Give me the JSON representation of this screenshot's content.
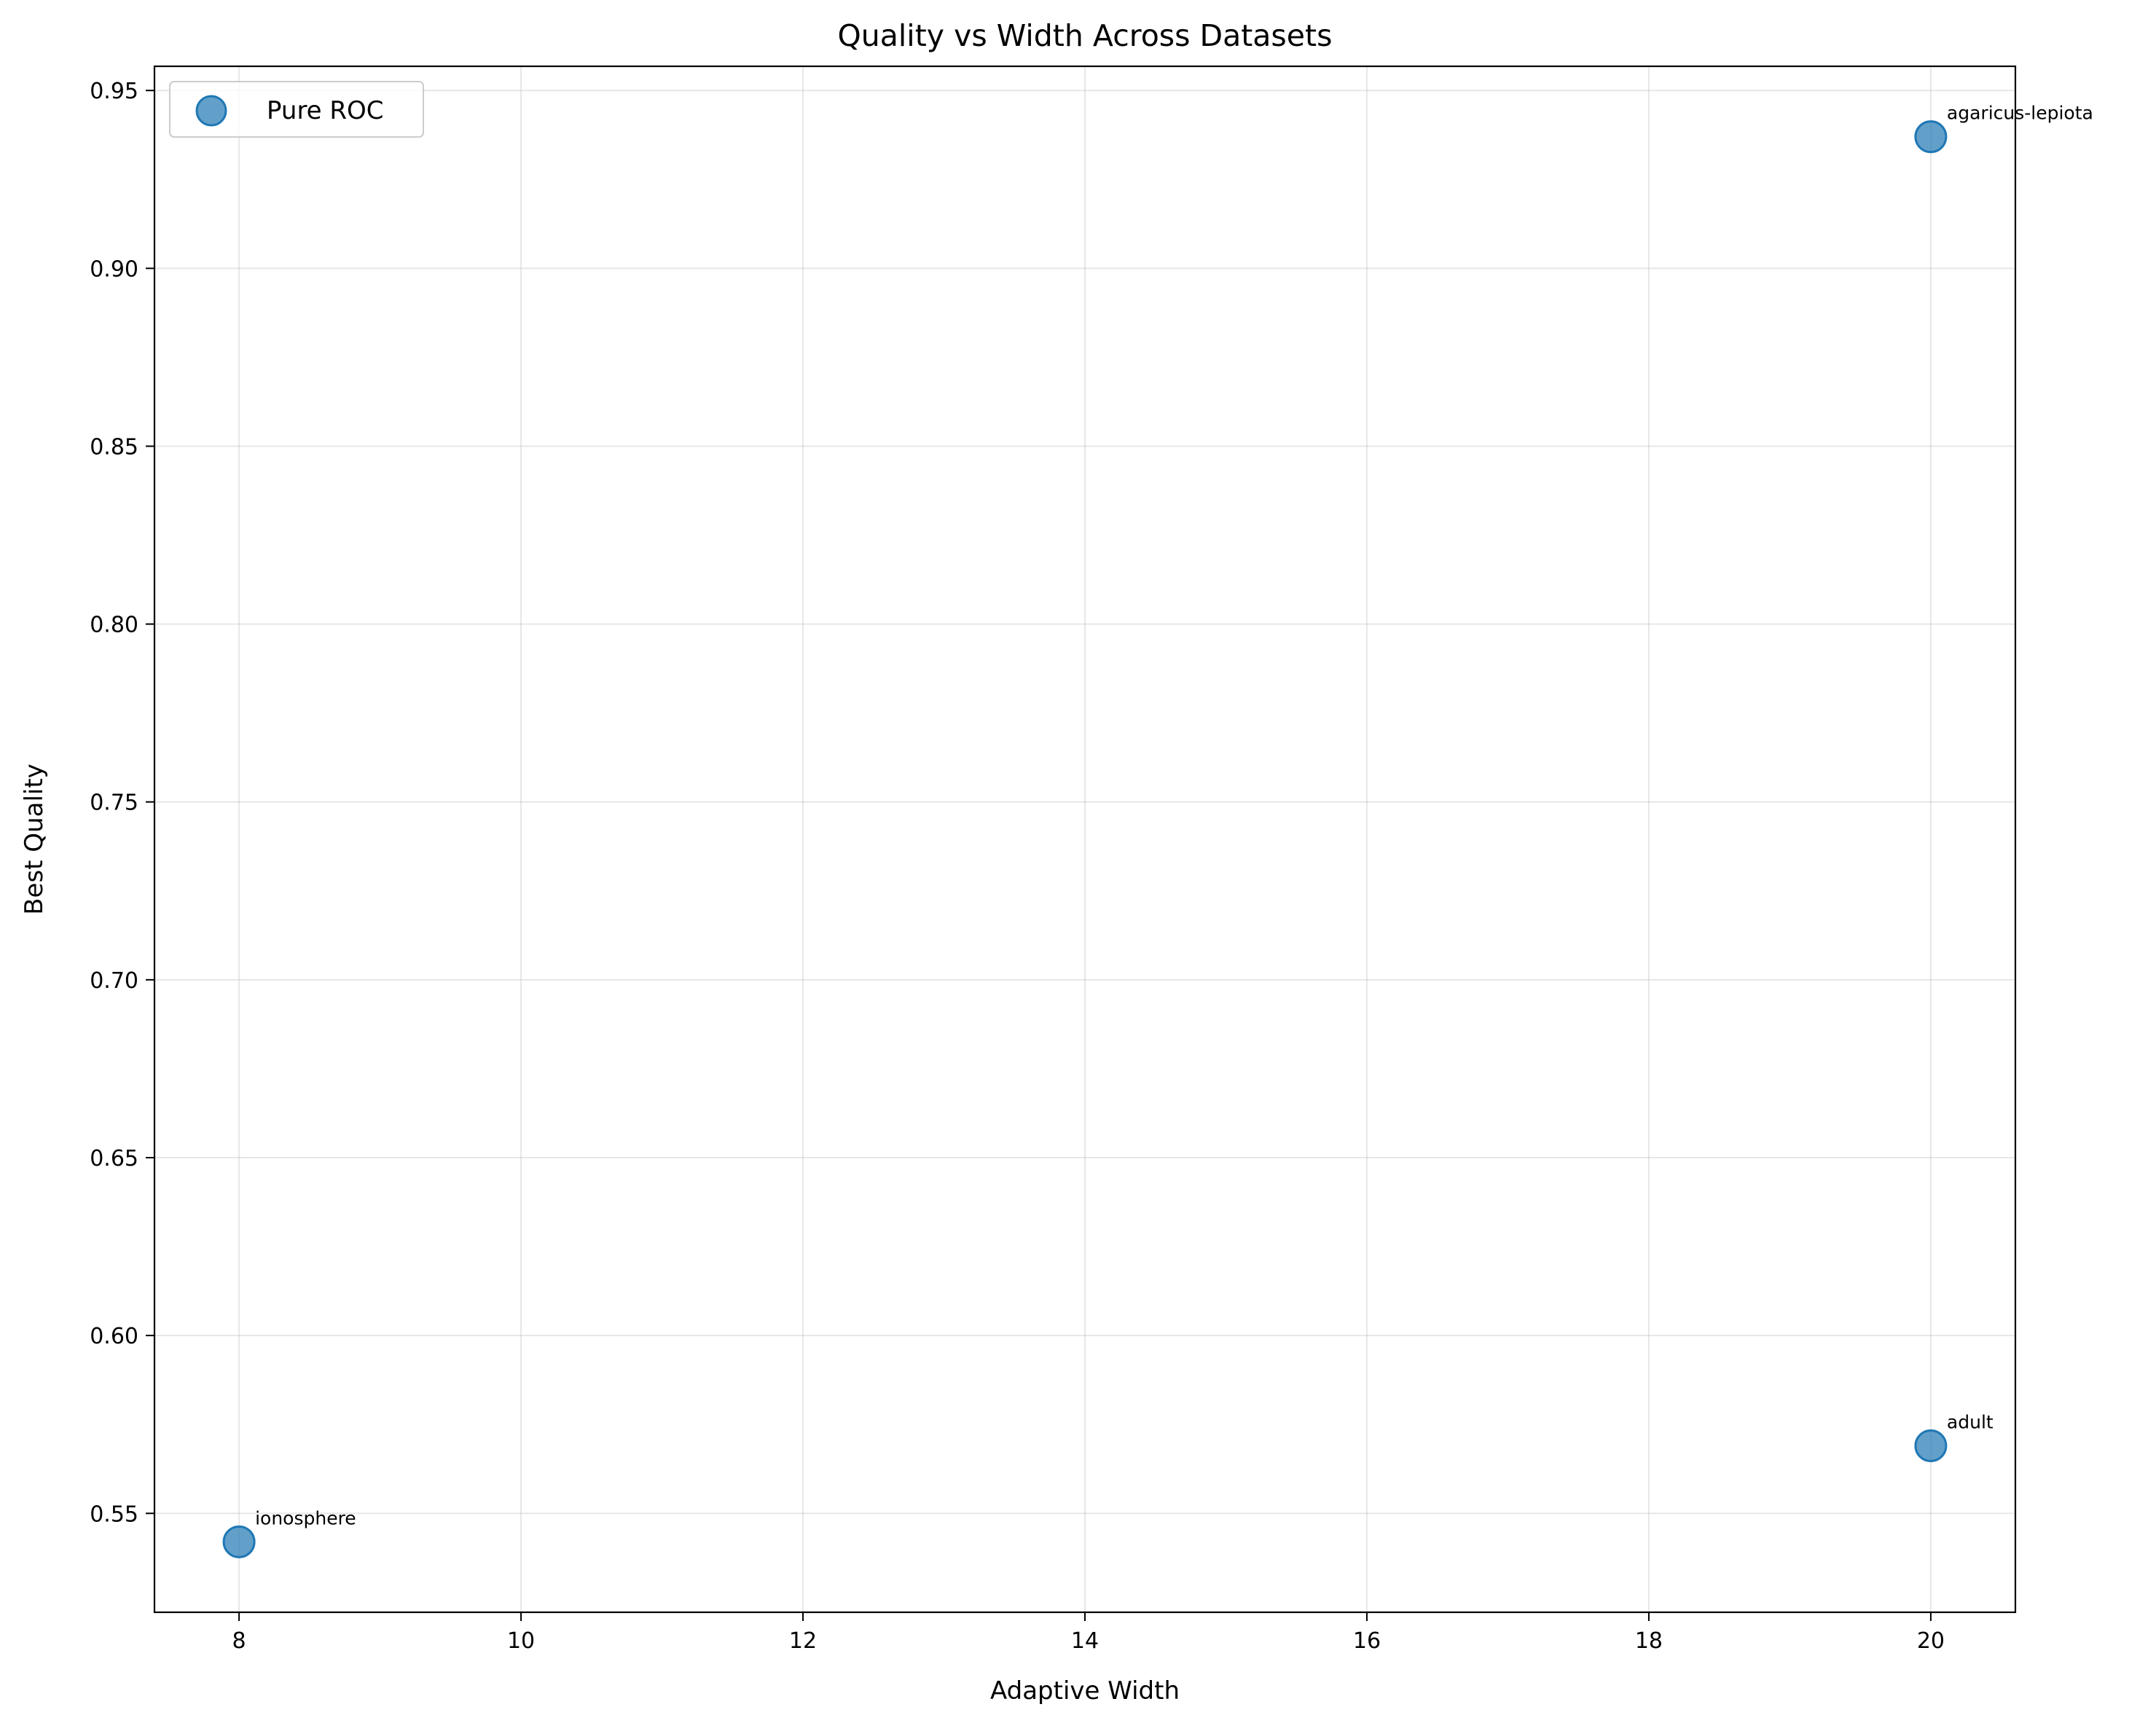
{
  "chart_data": {
    "type": "scatter",
    "title": "Quality vs Width Across Datasets",
    "xlabel": "Adaptive Width",
    "ylabel": "Best Quality",
    "xlim": [
      7.4,
      20.6
    ],
    "ylim": [
      0.5222,
      0.9568
    ],
    "xticks": [
      8,
      10,
      12,
      14,
      16,
      18,
      20
    ],
    "yticks": [
      0.55,
      0.6,
      0.65,
      0.7,
      0.75,
      0.8,
      0.85,
      0.9,
      0.95
    ],
    "grid": true,
    "legend": {
      "position": "top-left"
    },
    "series": [
      {
        "name": "Pure ROC",
        "color": "#1f77b4",
        "points": [
          {
            "x": 8,
            "y": 0.542,
            "label": "ionosphere"
          },
          {
            "x": 20,
            "y": 0.569,
            "label": "adult"
          },
          {
            "x": 20,
            "y": 0.937,
            "label": "agaricus-lepiota"
          }
        ]
      }
    ]
  }
}
